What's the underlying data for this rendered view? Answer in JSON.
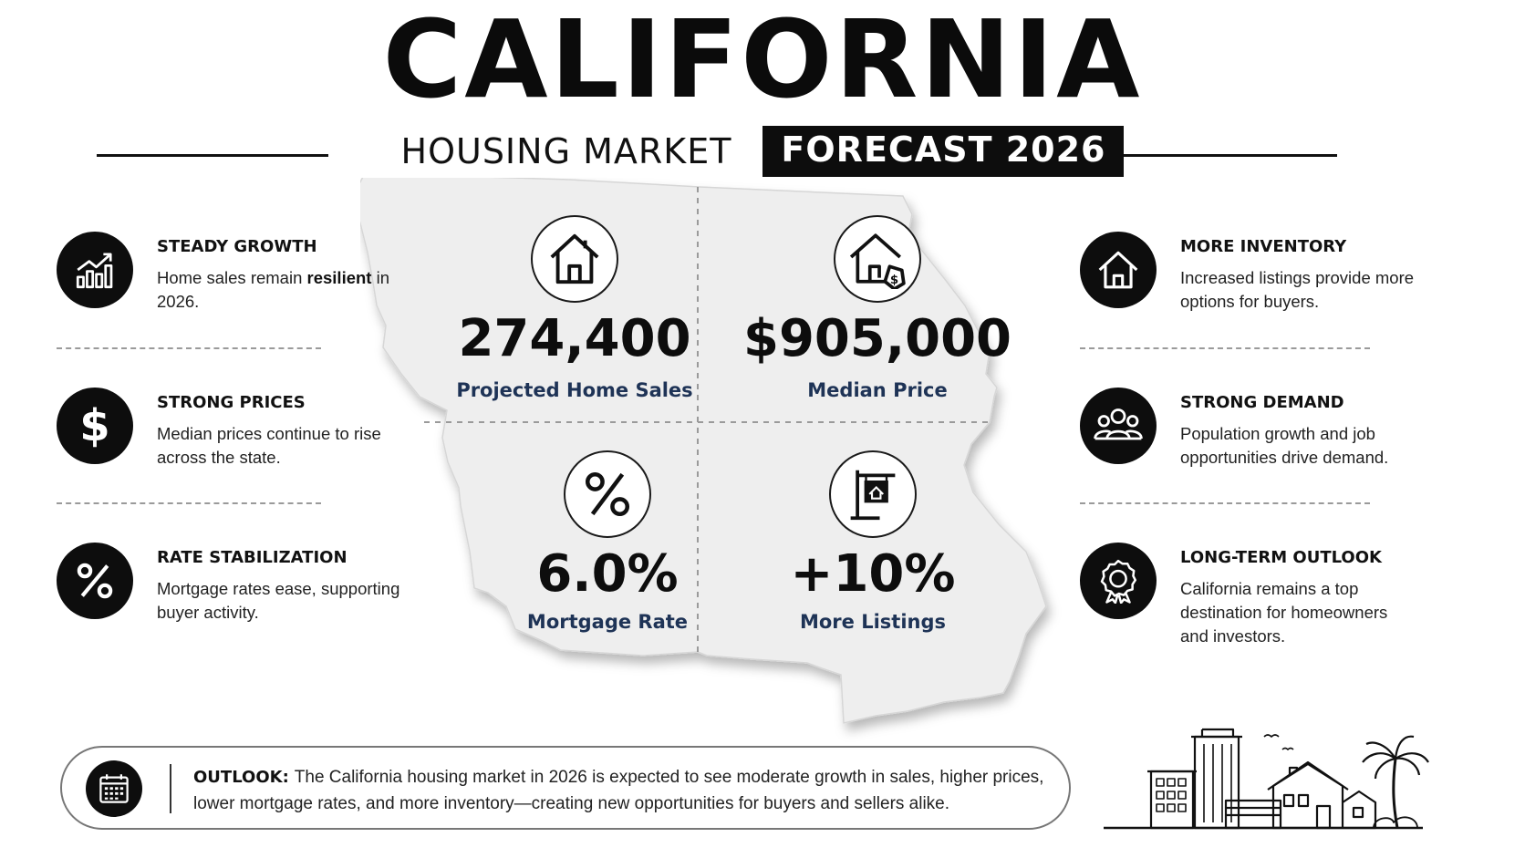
{
  "header": {
    "title": "CALIFORNIA",
    "subtitle": "HOUSING MARKET",
    "badge": "FORECAST 2026"
  },
  "stats": [
    {
      "value": "274,400",
      "label": "Projected Home Sales",
      "icon": "house-icon"
    },
    {
      "value": "$905,000",
      "label": "Median Price",
      "icon": "house-price-tag-icon"
    },
    {
      "value": "6.0%",
      "label": "Mortgage Rate",
      "icon": "percent-icon"
    },
    {
      "value": "+10%",
      "label": "More Listings",
      "icon": "for-sale-sign-icon"
    }
  ],
  "left_features": [
    {
      "title": "STEADY GROWTH",
      "desc_pre": "Home sales remain ",
      "desc_bold": "resilient",
      "desc_post": " in 2026.",
      "icon": "growth-chart-icon"
    },
    {
      "title": "STRONG PRICES",
      "desc": "Median prices continue to rise across the state.",
      "icon": "dollar-icon"
    },
    {
      "title": "RATE STABILIZATION",
      "desc": "Mortgage rates ease, supporting buyer activity.",
      "icon": "percent-icon"
    }
  ],
  "right_features": [
    {
      "title": "MORE INVENTORY",
      "desc": "Increased listings provide more options for buyers.",
      "icon": "house-icon"
    },
    {
      "title": "STRONG DEMAND",
      "desc": "Population growth and job opportunities drive demand.",
      "icon": "people-icon"
    },
    {
      "title": "LONG-TERM OUTLOOK",
      "desc": "California remains a top destination for homeowners and investors.",
      "icon": "award-ribbon-icon"
    }
  ],
  "outlook": {
    "label": "OUTLOOK:",
    "text": "The California housing market in 2026 is expected to see moderate growth in sales, higher prices, lower mortgage rates, and more inventory—creating new opportunities for buyers and sellers alike.",
    "icon": "calendar-icon"
  },
  "colors": {
    "accent_dark": "#0d0d0d",
    "stat_label": "#1e3356",
    "map_fill": "#eeeeee"
  }
}
